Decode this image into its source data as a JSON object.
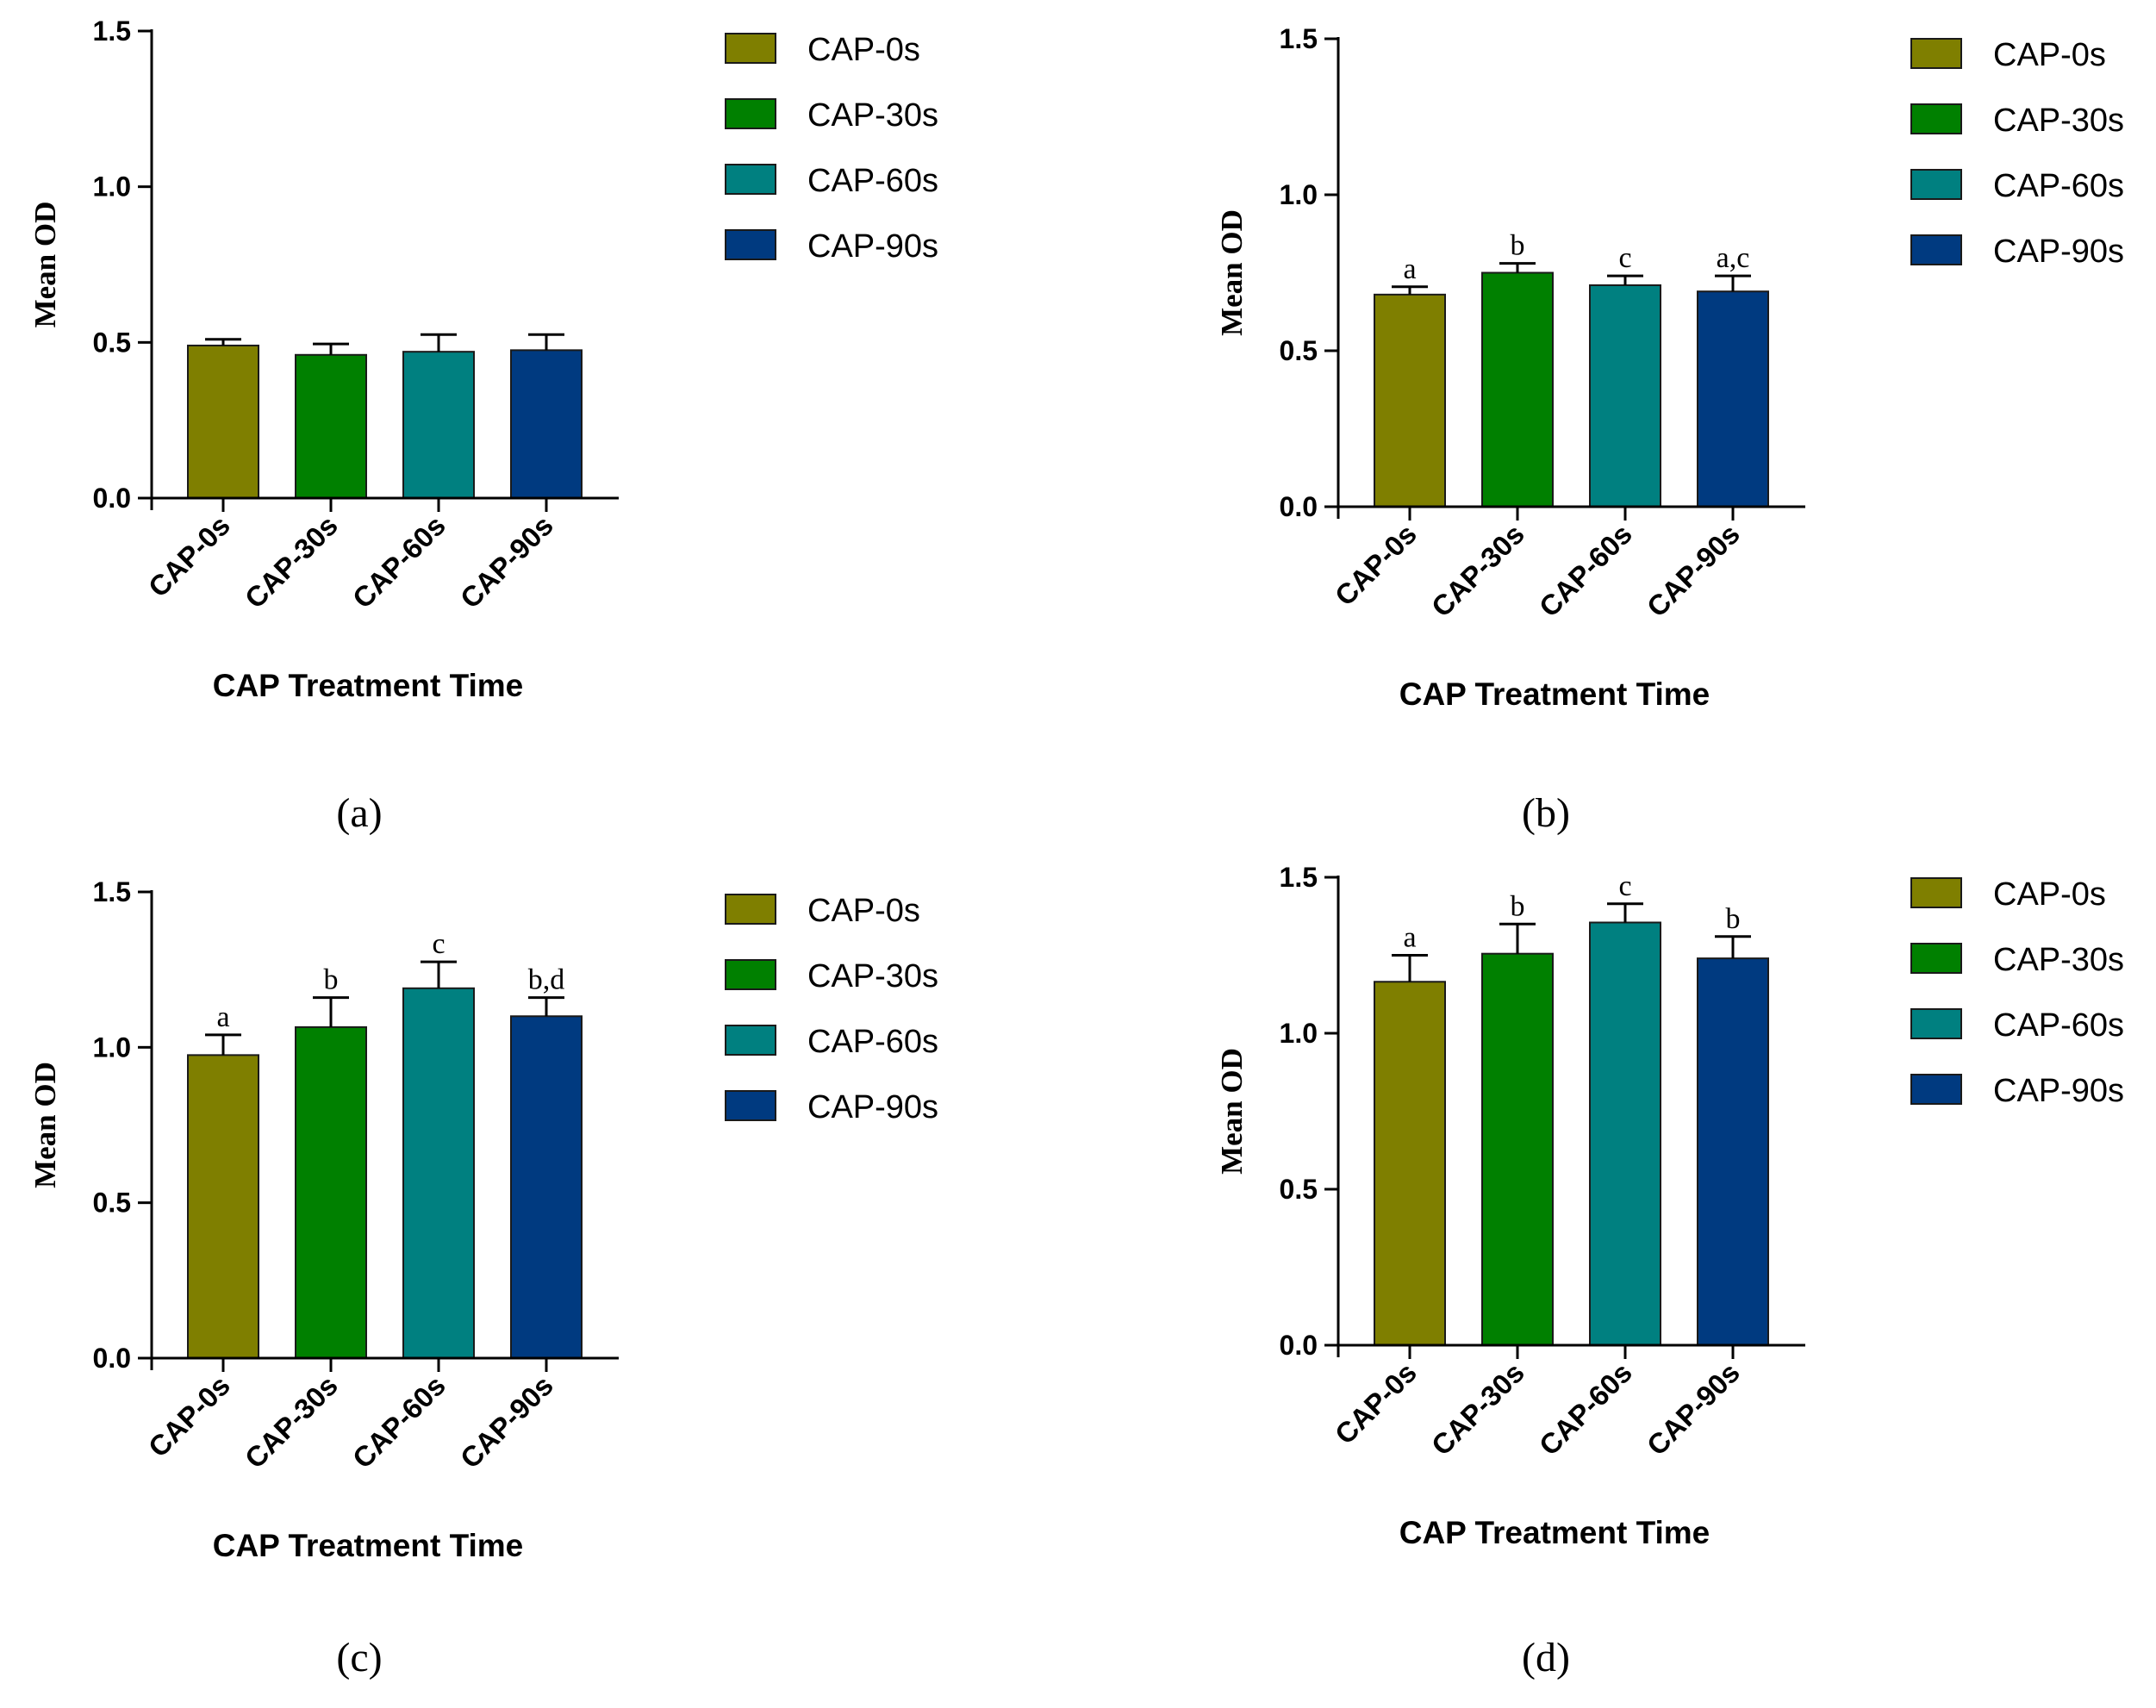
{
  "figure": {
    "panels": [
      {
        "panel_label": "(a)",
        "chart_data": {
          "type": "bar",
          "categories": [
            "CAP-0s",
            "CAP-30s",
            "CAP-60s",
            "CAP-90s"
          ],
          "values": [
            0.49,
            0.46,
            0.47,
            0.475
          ],
          "errors": [
            0.02,
            0.035,
            0.055,
            0.05
          ],
          "significance_letters": [
            "",
            "",
            "",
            ""
          ],
          "title": "",
          "xlabel": "CAP Treatment Time",
          "ylabel": "Mean OD",
          "ylim": [
            0,
            1.5
          ],
          "yticks": [
            "0.0",
            "0.5",
            "1.0",
            "1.5"
          ],
          "legend": [
            "CAP-0s",
            "CAP-30s",
            "CAP-60s",
            "CAP-90s"
          ],
          "legend_position": "right"
        }
      },
      {
        "panel_label": "(b)",
        "chart_data": {
          "type": "bar",
          "categories": [
            "CAP-0s",
            "CAP-30s",
            "CAP-60s",
            "CAP-90s"
          ],
          "values": [
            0.68,
            0.75,
            0.71,
            0.69
          ],
          "errors": [
            0.025,
            0.03,
            0.03,
            0.05
          ],
          "significance_letters": [
            "a",
            "b",
            "c",
            "a,c"
          ],
          "title": "",
          "xlabel": "CAP Treatment Time",
          "ylabel": "Mean OD",
          "ylim": [
            0,
            1.5
          ],
          "yticks": [
            "0.0",
            "0.5",
            "1.0",
            "1.5"
          ],
          "legend": [
            "CAP-0s",
            "CAP-30s",
            "CAP-60s",
            "CAP-90s"
          ],
          "legend_position": "right"
        }
      },
      {
        "panel_label": "(c)",
        "chart_data": {
          "type": "bar",
          "categories": [
            "CAP-0s",
            "CAP-30s",
            "CAP-60s",
            "CAP-90s"
          ],
          "values": [
            0.975,
            1.065,
            1.19,
            1.1
          ],
          "errors": [
            0.065,
            0.095,
            0.085,
            0.06
          ],
          "significance_letters": [
            "a",
            "b",
            "c",
            "b,d"
          ],
          "title": "",
          "xlabel": "CAP Treatment Time",
          "ylabel": "Mean OD",
          "ylim": [
            0,
            1.5
          ],
          "yticks": [
            "0.0",
            "0.5",
            "1.0",
            "1.5"
          ],
          "legend": [
            "CAP-0s",
            "CAP-30s",
            "CAP-60s",
            "CAP-90s"
          ],
          "legend_position": "right"
        }
      },
      {
        "panel_label": "(d)",
        "chart_data": {
          "type": "bar",
          "categories": [
            "CAP-0s",
            "CAP-30s",
            "CAP-60s",
            "CAP-90s"
          ],
          "values": [
            1.165,
            1.255,
            1.355,
            1.24
          ],
          "errors": [
            0.085,
            0.095,
            0.06,
            0.07
          ],
          "significance_letters": [
            "a",
            "b",
            "c",
            "b"
          ],
          "title": "",
          "xlabel": "CAP Treatment Time",
          "ylabel": "Mean OD",
          "ylim": [
            0,
            1.5
          ],
          "yticks": [
            "0.0",
            "0.5",
            "1.0",
            "1.5"
          ],
          "legend": [
            "CAP-0s",
            "CAP-30s",
            "CAP-60s",
            "CAP-90s"
          ],
          "legend_position": "right"
        }
      }
    ],
    "series_colors": [
      "#7f7f00",
      "#008000",
      "#008080",
      "#003a80"
    ]
  }
}
